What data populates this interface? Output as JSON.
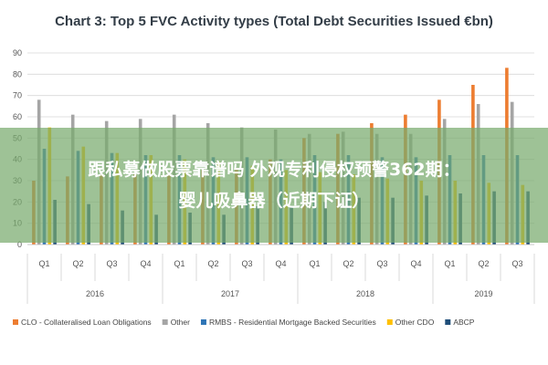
{
  "chart_data": {
    "type": "bar",
    "title": "Chart 3: Top 5 FVC Activity types (Total Debt Securities Issued €bn)",
    "xlabel": "",
    "ylabel": "",
    "ylim": [
      0,
      90
    ],
    "yticks": [
      0,
      10,
      20,
      30,
      40,
      50,
      60,
      70,
      80,
      90
    ],
    "grid": true,
    "legend_position": "bottom",
    "categories": [
      "Q1",
      "Q2",
      "Q3",
      "Q4",
      "Q1",
      "Q2",
      "Q3",
      "Q4",
      "Q1",
      "Q2",
      "Q3",
      "Q4",
      "Q1",
      "Q2",
      "Q3"
    ],
    "year_groups": [
      {
        "label": "2016",
        "count": 4
      },
      {
        "label": "2017",
        "count": 4
      },
      {
        "label": "2018",
        "count": 4
      },
      {
        "label": "2019",
        "count": 3
      }
    ],
    "series": [
      {
        "name": "CLO - Collateralised Loan Obligations",
        "color": "#ed7d31",
        "values": [
          30,
          32,
          33,
          33,
          34,
          35,
          36,
          40,
          50,
          52,
          57,
          61,
          68,
          75,
          83
        ]
      },
      {
        "name": "Other",
        "color": "#a5a5a5",
        "values": [
          68,
          61,
          58,
          59,
          61,
          57,
          55,
          54,
          52,
          53,
          52,
          52,
          59,
          66,
          67
        ]
      },
      {
        "name": "RMBS - Residential Mortgage Backed Securities",
        "color": "#2e75b6",
        "values": [
          45,
          44,
          43,
          42,
          42,
          41,
          41,
          40,
          42,
          42,
          41,
          41,
          42,
          42,
          42
        ]
      },
      {
        "name": "Other CDO",
        "color": "#ffc000",
        "values": [
          55,
          46,
          43,
          42,
          40,
          39,
          37,
          35,
          34,
          33,
          31,
          30,
          30,
          29,
          28
        ]
      },
      {
        "name": "ABCP",
        "color": "#1f4e79",
        "values": [
          21,
          19,
          16,
          14,
          15,
          14,
          18,
          18,
          20,
          22,
          22,
          23,
          24,
          25,
          25
        ]
      }
    ]
  },
  "overlay": {
    "line1": "跟私募做股票靠谱吗 外观专利侵权预警362期：",
    "line2": "婴儿吸鼻器（近期下证）"
  }
}
